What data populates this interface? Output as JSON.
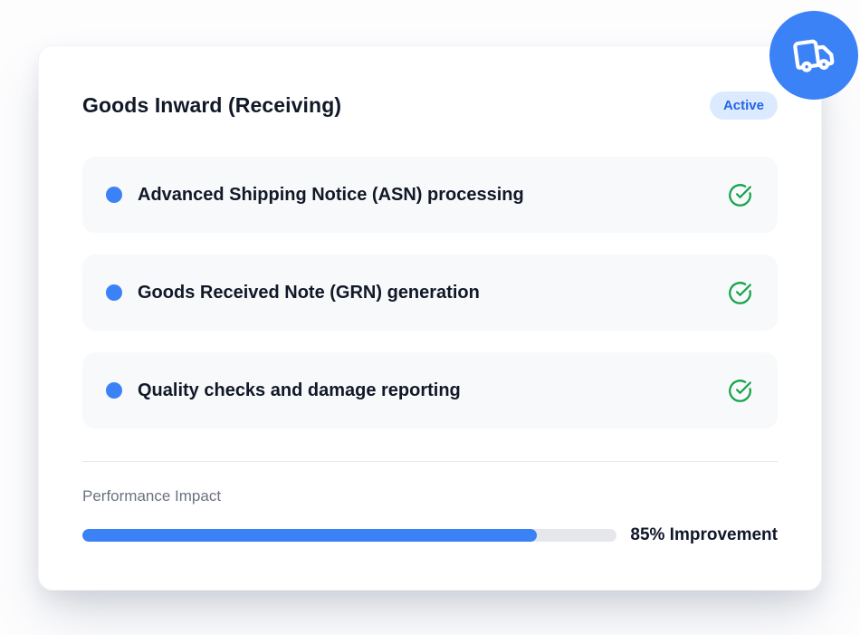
{
  "card": {
    "title": "Goods Inward (Receiving)",
    "badge": "Active",
    "features": [
      {
        "label": "Advanced Shipping Notice (ASN) processing",
        "status_icon": "check-circle-icon"
      },
      {
        "label": "Goods Received Note (GRN) generation",
        "status_icon": "check-circle-icon"
      },
      {
        "label": "Quality checks and damage reporting",
        "status_icon": "check-circle-icon"
      }
    ],
    "performance": {
      "label": "Performance Impact",
      "percent": 85,
      "value_label": "85% Improvement"
    }
  },
  "fab": {
    "icon": "truck-icon"
  },
  "colors": {
    "accent_blue": "#3b82f6",
    "badge_bg": "#dbeafe",
    "badge_text": "#2563eb",
    "success_green": "#16a34a",
    "track_gray": "#e5e7eb",
    "item_bg": "#f8f9fb",
    "text_dark": "#111827",
    "text_muted": "#6b7280"
  }
}
